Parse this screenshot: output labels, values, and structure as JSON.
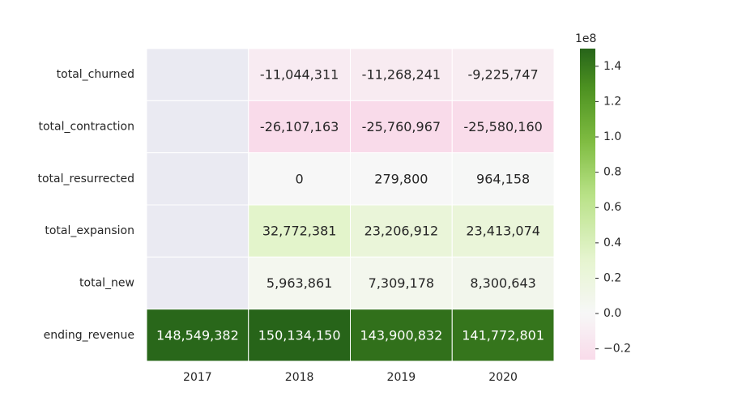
{
  "chart_data": {
    "type": "heatmap",
    "rows": [
      "total_churned",
      "total_contraction",
      "total_resurrected",
      "total_expansion",
      "total_new",
      "ending_revenue"
    ],
    "columns": [
      "2017",
      "2018",
      "2019",
      "2020"
    ],
    "values": [
      [
        null,
        -11044311,
        -11268241,
        -9225747
      ],
      [
        null,
        -26107163,
        -25760967,
        -25580160
      ],
      [
        null,
        0,
        279800,
        964158
      ],
      [
        null,
        32772381,
        23206912,
        23413074
      ],
      [
        null,
        5963861,
        7309178,
        8300643
      ],
      [
        148549382,
        150134150,
        143900832,
        141772801
      ]
    ],
    "colorbar": {
      "min": -26107163,
      "max": 150000000,
      "ticks": [
        -0.2,
        0.0,
        0.2,
        0.4,
        0.6,
        0.8,
        1.0,
        1.2,
        1.4
      ],
      "tick_labels": [
        "−0.2",
        "0.0",
        "0.2",
        "0.4",
        "0.6",
        "0.8",
        "1.0",
        "1.2",
        "1.4"
      ],
      "offset_label": "1e8",
      "scale": 100000000
    },
    "colors": {
      "missing": "#eaeaf2",
      "low": "#f9dbea",
      "mid": "#f7f7f7",
      "high": "#276419"
    },
    "title": "",
    "xlabel": "",
    "ylabel": ""
  }
}
